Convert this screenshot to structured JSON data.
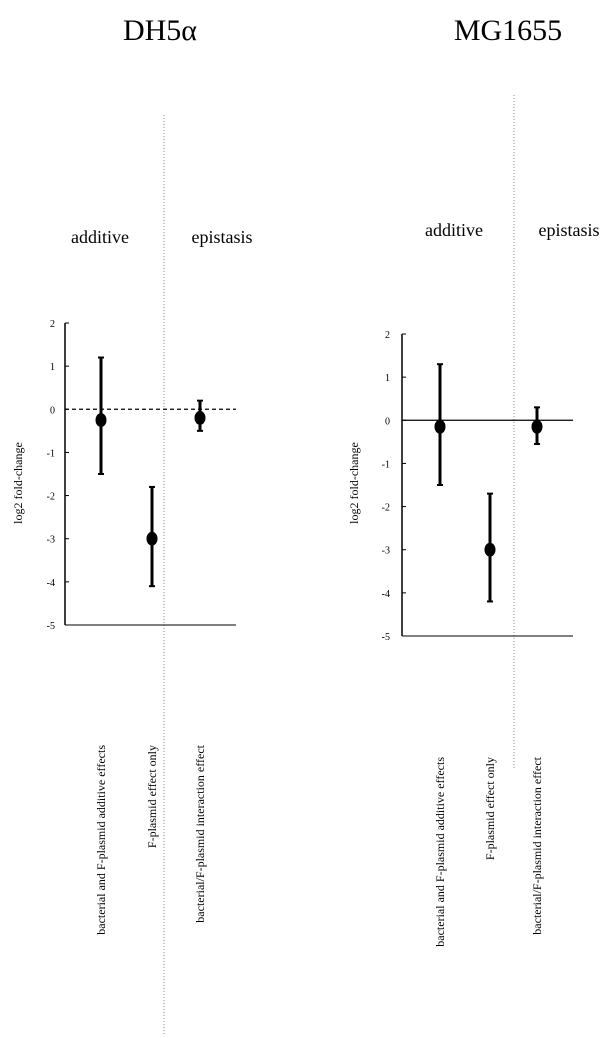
{
  "chart_data": [
    {
      "type": "scatter",
      "title": "DH5α",
      "section_labels": [
        "additive",
        "epistasis"
      ],
      "ylabel": "log2 fold-change",
      "ylim": [
        -5,
        2
      ],
      "yticks": [
        "2",
        "1",
        "0",
        "-1",
        "-2",
        "-3",
        "-4",
        "-5"
      ],
      "zero_line": "dashed",
      "categories": [
        "bacterial and F-plasmid additive effects",
        "F-plasmid effect only",
        "bacterial/F-plasmid interaction effect"
      ],
      "values": [
        -0.25,
        -3.0,
        -0.2
      ],
      "error_low": [
        -1.5,
        -4.1,
        -0.5
      ],
      "error_high": [
        1.2,
        -1.8,
        0.2
      ]
    },
    {
      "type": "scatter",
      "title": "MG1655",
      "section_labels": [
        "additive",
        "epistasis"
      ],
      "ylabel": "log2 fold-change",
      "ylim": [
        -5,
        2
      ],
      "yticks": [
        "2",
        "1",
        "0",
        "-1",
        "-2",
        "-3",
        "-4",
        "-5"
      ],
      "zero_line": "solid",
      "categories": [
        "bacterial and F-plasmid additive effects",
        "F-plasmid effect only",
        "bacterial/F-plasmid interaction effect"
      ],
      "values": [
        -0.15,
        -3.0,
        -0.15
      ],
      "error_low": [
        -1.5,
        -4.2,
        -0.55
      ],
      "error_high": [
        1.3,
        -1.7,
        0.3
      ]
    }
  ]
}
